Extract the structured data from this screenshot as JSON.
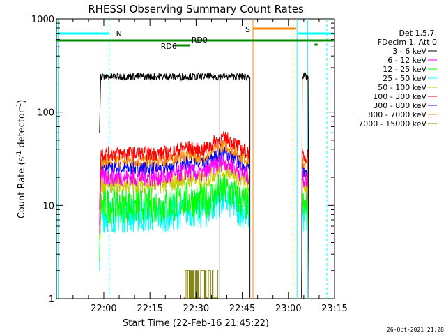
{
  "chart_data": {
    "type": "line",
    "title": "RHESSI Observing Summary Count Rates",
    "xlabel": "Start Time (22-Feb-16 21:45:22)",
    "ylabel_main": "Count Rate (s",
    "ylabel_sup1": "-1",
    "ylabel_mid": " detector",
    "ylabel_sup2": "-1",
    "ylabel_end": ")",
    "y_scale": "log",
    "ylim": [
      1,
      1000
    ],
    "y_ticks": [
      1,
      10,
      100,
      1000
    ],
    "y_tick_labels": [
      "1",
      "10",
      "100",
      "1000"
    ],
    "xlim_minutes": [
      -15.4,
      75
    ],
    "x_ticks_minutes": [
      0,
      15,
      30,
      45,
      60,
      75
    ],
    "x_tick_labels": [
      "22:00",
      "22:15",
      "22:30",
      "22:45",
      "23:00",
      "23:15"
    ],
    "legend_header": [
      "Det 1,5,7,",
      "FDecim 1, Att 0"
    ],
    "legend_placement": "right",
    "series": [
      {
        "name": "3 - 6 keV",
        "color": "#000000",
        "level": 240
      },
      {
        "name": "6 - 12 keV",
        "color": "#ff00ff",
        "level": 20
      },
      {
        "name": "12 - 25 keV",
        "color": "#00ff00",
        "level": 10
      },
      {
        "name": "25 - 50 keV",
        "color": "#00ffff",
        "level": 8
      },
      {
        "name": "50 - 100 keV",
        "color": "#cccc00",
        "level": 17
      },
      {
        "name": "100 - 300 keV",
        "color": "#ff0000",
        "level": 36
      },
      {
        "name": "300 - 800 keV",
        "color": "#0000ff",
        "level": 25
      },
      {
        "name": "800 - 7000 keV",
        "color": "#ff8800",
        "level": 30
      },
      {
        "name": "7000 - 15000 keV",
        "color": "#7a7a00",
        "level": 1
      }
    ],
    "annotations": {
      "N": "N",
      "S": "S",
      "RD0": "RD0",
      "RD6": "RD6"
    },
    "footer_date": "26-Oct-2021 21:28"
  }
}
